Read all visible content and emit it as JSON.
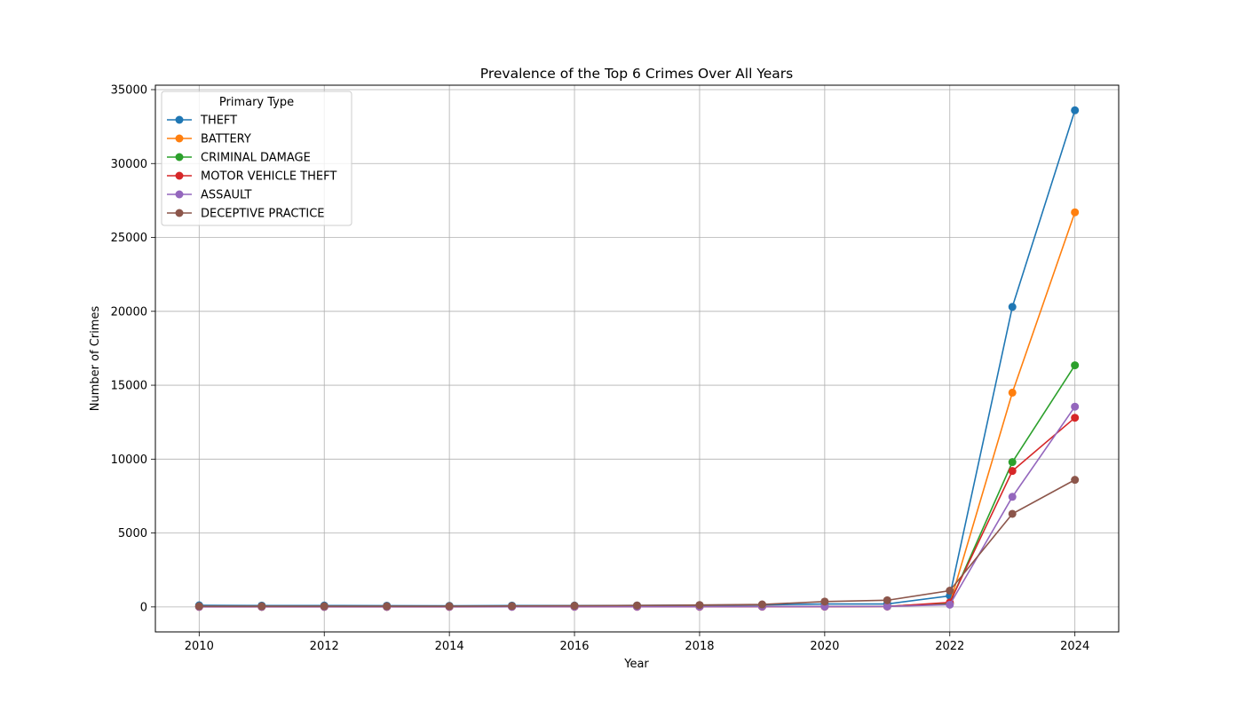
{
  "chart_data": {
    "type": "line",
    "title": "Prevalence of the Top 6 Crimes Over All Years",
    "xlabel": "Year",
    "ylabel": "Number of Crimes",
    "x": [
      2010,
      2011,
      2012,
      2013,
      2014,
      2015,
      2016,
      2017,
      2018,
      2019,
      2020,
      2021,
      2022,
      2023,
      2024
    ],
    "xlim": [
      2009.3,
      2024.7
    ],
    "ylim": [
      -1690,
      35300
    ],
    "xticks": [
      "2010",
      "2012",
      "2014",
      "2016",
      "2018",
      "2020",
      "2022",
      "2024"
    ],
    "yticks": [
      "0",
      "5000",
      "10000",
      "15000",
      "20000",
      "25000",
      "30000",
      "35000"
    ],
    "grid": true,
    "legend": {
      "title": "Primary Type",
      "position": "upper-left"
    },
    "series": [
      {
        "name": "THEFT",
        "color": "#1f77b4",
        "values": [
          110,
          90,
          95,
          85,
          75,
          90,
          95,
          100,
          120,
          140,
          200,
          200,
          750,
          20300,
          33600
        ]
      },
      {
        "name": "BATTERY",
        "color": "#ff7f0e",
        "values": [
          20,
          10,
          15,
          10,
          15,
          20,
          25,
          25,
          30,
          40,
          30,
          30,
          200,
          14500,
          26700
        ]
      },
      {
        "name": "CRIMINAL DAMAGE",
        "color": "#2ca02c",
        "values": [
          15,
          10,
          10,
          10,
          15,
          20,
          20,
          25,
          25,
          30,
          30,
          40,
          250,
          9800,
          16350
        ]
      },
      {
        "name": "MOTOR VEHICLE THEFT",
        "color": "#d62728",
        "values": [
          5,
          5,
          5,
          5,
          5,
          10,
          10,
          10,
          10,
          15,
          20,
          30,
          300,
          9200,
          12800
        ]
      },
      {
        "name": "ASSAULT",
        "color": "#9467bd",
        "values": [
          10,
          10,
          10,
          10,
          10,
          10,
          15,
          15,
          20,
          25,
          25,
          30,
          150,
          7450,
          13550
        ]
      },
      {
        "name": "DECEPTIVE PRACTICE",
        "color": "#8c564b",
        "values": [
          50,
          50,
          50,
          50,
          50,
          60,
          80,
          100,
          130,
          170,
          360,
          450,
          1100,
          6300,
          8600
        ]
      }
    ]
  }
}
